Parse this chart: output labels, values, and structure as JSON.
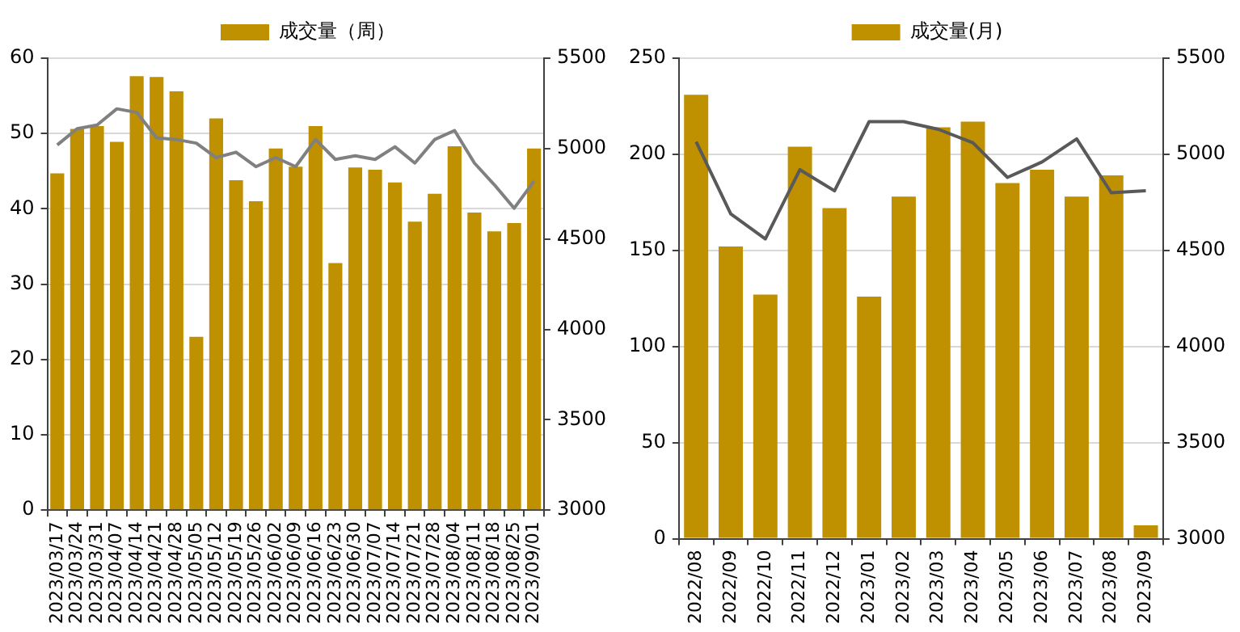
{
  "chart_data": [
    {
      "type": "bar",
      "categories": [
        "2023/03/17",
        "2023/03/24",
        "2023/03/31",
        "2023/04/07",
        "2023/04/14",
        "2023/04/21",
        "2023/04/28",
        "2023/05/05",
        "2023/05/12",
        "2023/05/19",
        "2023/05/26",
        "2023/06/02",
        "2023/06/09",
        "2023/06/16",
        "2023/06/23",
        "2023/06/30",
        "2023/07/07",
        "2023/07/14",
        "2023/07/21",
        "2023/07/28",
        "2023/08/04",
        "2023/08/11",
        "2023/08/18",
        "2023/08/25",
        "2023/09/01"
      ],
      "series": [
        {
          "name": "成交量（周）",
          "color": "#bf9000",
          "values": [
            44.7,
            50.6,
            51,
            48.9,
            57.6,
            57.5,
            55.6,
            23,
            52,
            43.8,
            41,
            48,
            45.6,
            51,
            32.8,
            45.5,
            45.2,
            43.5,
            38.3,
            42,
            48.3,
            39.5,
            37,
            38.1,
            48
          ]
        },
        {
          "type": "line",
          "axis": "y2",
          "color": "#808080",
          "values": [
            5020,
            5110,
            5130,
            5220,
            5200,
            5060,
            5050,
            5030,
            4950,
            4980,
            4900,
            4950,
            4900,
            5050,
            4940,
            4960,
            4940,
            5010,
            4920,
            5050,
            5100,
            4920,
            4800,
            4670,
            4820
          ]
        }
      ],
      "ylim": [
        0,
        60
      ],
      "yticks": [
        0,
        10,
        20,
        30,
        40,
        50,
        60
      ],
      "y2lim": [
        3000,
        5500
      ],
      "y2ticks": [
        3000,
        3500,
        4000,
        4500,
        5000,
        5500
      ],
      "grid": "y",
      "legend": "top"
    },
    {
      "type": "bar",
      "categories": [
        "2022/08",
        "2022/09",
        "2022/10",
        "2022/11",
        "2022/12",
        "2023/01",
        "2023/02",
        "2023/03",
        "2023/04",
        "2023/05",
        "2023/06",
        "2023/07",
        "2023/08",
        "2023/09"
      ],
      "series": [
        {
          "name": "成交量(月)",
          "color": "#bf9000",
          "values": [
            231,
            152,
            127,
            204,
            172,
            126,
            178,
            214,
            217,
            185,
            192,
            178,
            189,
            7
          ]
        },
        {
          "type": "line",
          "axis": "y2",
          "color": "#595959",
          "values": [
            5065,
            4690,
            4560,
            4920,
            4810,
            5170,
            5170,
            5130,
            5060,
            4880,
            4960,
            5080,
            4800,
            4810
          ]
        }
      ],
      "ylim": [
        0,
        250
      ],
      "yticks": [
        0,
        50,
        100,
        150,
        200,
        250
      ],
      "y2lim": [
        3000,
        5500
      ],
      "y2ticks": [
        3000,
        3500,
        4000,
        4500,
        5000,
        5500
      ],
      "grid": "y",
      "legend": "top"
    }
  ]
}
